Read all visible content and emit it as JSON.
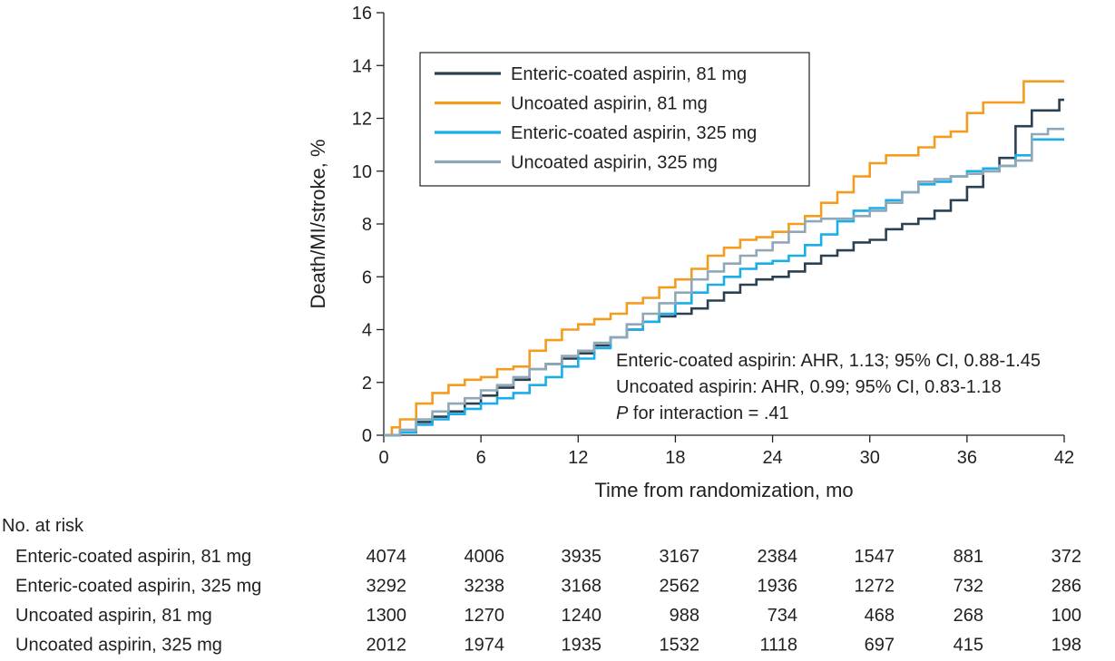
{
  "chart_data": {
    "type": "line",
    "step": true,
    "xlabel": "Time from randomization, mo",
    "ylabel": "Death/MI/stroke, %",
    "xlim": [
      0,
      42
    ],
    "ylim": [
      0,
      16
    ],
    "xticks": [
      0,
      6,
      12,
      18,
      24,
      30,
      36,
      42
    ],
    "yticks": [
      0,
      2,
      4,
      6,
      8,
      10,
      12,
      14,
      16
    ],
    "legend_position": "top-left",
    "series": [
      {
        "name": "Enteric-coated aspirin, 81 mg",
        "color": "#2b4050",
        "points": [
          [
            0,
            0
          ],
          [
            1,
            0.2
          ],
          [
            2,
            0.5
          ],
          [
            3,
            0.7
          ],
          [
            4,
            0.9
          ],
          [
            5,
            1.2
          ],
          [
            6,
            1.5
          ],
          [
            7,
            1.8
          ],
          [
            8,
            2.1
          ],
          [
            9,
            2.5
          ],
          [
            10,
            2.7
          ],
          [
            11,
            2.9
          ],
          [
            12,
            3.1
          ],
          [
            13,
            3.4
          ],
          [
            14,
            3.7
          ],
          [
            15,
            4.0
          ],
          [
            16,
            4.3
          ],
          [
            17,
            4.5
          ],
          [
            18,
            4.6
          ],
          [
            19,
            4.8
          ],
          [
            20,
            5.1
          ],
          [
            21,
            5.4
          ],
          [
            22,
            5.7
          ],
          [
            23,
            5.9
          ],
          [
            24,
            6.0
          ],
          [
            25,
            6.2
          ],
          [
            26,
            6.5
          ],
          [
            27,
            6.8
          ],
          [
            28,
            7.0
          ],
          [
            29,
            7.3
          ],
          [
            30,
            7.4
          ],
          [
            31,
            7.8
          ],
          [
            32,
            8.0
          ],
          [
            33,
            8.2
          ],
          [
            34,
            8.5
          ],
          [
            35,
            8.9
          ],
          [
            36,
            9.4
          ],
          [
            37,
            10.0
          ],
          [
            38,
            10.5
          ],
          [
            39,
            11.7
          ],
          [
            40,
            12.3
          ],
          [
            41.6,
            12.3
          ],
          [
            41.7,
            12.7
          ],
          [
            42,
            12.7
          ]
        ]
      },
      {
        "name": "Uncoated aspirin, 81 mg",
        "color": "#f39c1e",
        "points": [
          [
            0,
            0
          ],
          [
            0.5,
            0.3
          ],
          [
            1,
            0.6
          ],
          [
            2,
            1.2
          ],
          [
            3,
            1.6
          ],
          [
            4,
            1.9
          ],
          [
            5,
            2.1
          ],
          [
            6,
            2.2
          ],
          [
            7,
            2.5
          ],
          [
            8,
            2.6
          ],
          [
            9,
            3.2
          ],
          [
            10,
            3.6
          ],
          [
            11,
            4.0
          ],
          [
            12,
            4.2
          ],
          [
            13,
            4.4
          ],
          [
            14,
            4.6
          ],
          [
            15,
            5.0
          ],
          [
            16,
            5.2
          ],
          [
            17,
            5.6
          ],
          [
            18,
            5.9
          ],
          [
            19,
            6.3
          ],
          [
            20,
            6.8
          ],
          [
            21,
            7.1
          ],
          [
            22,
            7.4
          ],
          [
            23,
            7.5
          ],
          [
            24,
            7.7
          ],
          [
            25,
            8.0
          ],
          [
            26,
            8.3
          ],
          [
            27,
            8.8
          ],
          [
            28,
            9.2
          ],
          [
            29,
            9.8
          ],
          [
            30,
            10.3
          ],
          [
            31,
            10.6
          ],
          [
            32,
            10.6
          ],
          [
            33,
            10.9
          ],
          [
            34,
            11.3
          ],
          [
            35,
            11.5
          ],
          [
            36,
            12.2
          ],
          [
            37,
            12.6
          ],
          [
            39,
            12.6
          ],
          [
            39.5,
            13.4
          ],
          [
            42,
            13.4
          ]
        ]
      },
      {
        "name": "Enteric-coated aspirin, 325 mg",
        "color": "#19aee8",
        "points": [
          [
            0,
            0
          ],
          [
            1,
            0.1
          ],
          [
            2,
            0.4
          ],
          [
            3,
            0.6
          ],
          [
            4,
            0.8
          ],
          [
            5,
            1.0
          ],
          [
            6,
            1.2
          ],
          [
            7,
            1.4
          ],
          [
            8,
            1.6
          ],
          [
            9,
            1.9
          ],
          [
            10,
            2.2
          ],
          [
            11,
            2.6
          ],
          [
            12,
            2.9
          ],
          [
            13,
            3.3
          ],
          [
            14,
            3.7
          ],
          [
            15,
            4.0
          ],
          [
            16,
            4.3
          ],
          [
            17,
            4.6
          ],
          [
            18,
            5.0
          ],
          [
            19,
            5.4
          ],
          [
            20,
            5.7
          ],
          [
            21,
            6.0
          ],
          [
            22,
            6.3
          ],
          [
            23,
            6.5
          ],
          [
            24,
            6.6
          ],
          [
            25,
            6.8
          ],
          [
            26,
            7.2
          ],
          [
            27,
            7.6
          ],
          [
            28,
            8.1
          ],
          [
            29,
            8.5
          ],
          [
            30,
            8.6
          ],
          [
            31,
            8.9
          ],
          [
            32,
            9.2
          ],
          [
            33,
            9.5
          ],
          [
            34,
            9.6
          ],
          [
            35,
            9.8
          ],
          [
            36,
            10.0
          ],
          [
            37,
            10.1
          ],
          [
            38,
            10.2
          ],
          [
            39,
            10.6
          ],
          [
            40,
            11.2
          ],
          [
            42,
            11.2
          ]
        ]
      },
      {
        "name": "Uncoated aspirin, 325 mg",
        "color": "#8fa8b8",
        "points": [
          [
            0,
            0
          ],
          [
            1,
            0.2
          ],
          [
            2,
            0.6
          ],
          [
            3,
            0.9
          ],
          [
            4,
            1.2
          ],
          [
            5,
            1.4
          ],
          [
            6,
            1.7
          ],
          [
            7,
            1.9
          ],
          [
            8,
            2.2
          ],
          [
            9,
            2.5
          ],
          [
            10,
            2.7
          ],
          [
            11,
            3.0
          ],
          [
            12,
            3.2
          ],
          [
            13,
            3.5
          ],
          [
            14,
            3.7
          ],
          [
            15,
            4.2
          ],
          [
            16,
            4.6
          ],
          [
            17,
            5.0
          ],
          [
            18,
            5.4
          ],
          [
            19,
            5.9
          ],
          [
            20,
            6.2
          ],
          [
            21,
            6.5
          ],
          [
            22,
            6.8
          ],
          [
            23,
            7.0
          ],
          [
            24,
            7.3
          ],
          [
            25,
            7.7
          ],
          [
            26,
            8.1
          ],
          [
            27,
            8.2
          ],
          [
            28,
            8.2
          ],
          [
            29,
            8.3
          ],
          [
            30,
            8.5
          ],
          [
            31,
            8.8
          ],
          [
            32,
            9.2
          ],
          [
            33,
            9.6
          ],
          [
            34,
            9.7
          ],
          [
            35,
            9.8
          ],
          [
            36,
            9.9
          ],
          [
            37,
            10.0
          ],
          [
            38,
            10.2
          ],
          [
            39,
            10.4
          ],
          [
            40,
            11.4
          ],
          [
            41,
            11.6
          ],
          [
            42,
            11.6
          ]
        ]
      }
    ],
    "annotations": [
      {
        "text": "Enteric-coated aspirin: AHR, 1.13; 95% CI, 0.88-1.45"
      },
      {
        "text": "Uncoated aspirin: AHR, 0.99; 95% CI, 0.83-1.18"
      },
      {
        "text_italic": "P",
        "text": " for interaction = .41"
      }
    ],
    "risk_table": {
      "title": "No. at risk",
      "times": [
        0,
        6,
        12,
        18,
        24,
        30,
        36,
        42
      ],
      "rows": [
        {
          "label": "Enteric-coated aspirin, 81 mg",
          "values": [
            4074,
            4006,
            3935,
            3167,
            2384,
            1547,
            881,
            372
          ]
        },
        {
          "label": "Enteric-coated aspirin, 325 mg",
          "values": [
            3292,
            3238,
            3168,
            2562,
            1936,
            1272,
            732,
            286
          ]
        },
        {
          "label": "Uncoated aspirin, 81 mg",
          "values": [
            1300,
            1270,
            1240,
            988,
            734,
            468,
            268,
            100
          ]
        },
        {
          "label": "Uncoated aspirin, 325 mg",
          "values": [
            2012,
            1974,
            1935,
            1532,
            1118,
            697,
            415,
            198
          ]
        }
      ]
    }
  }
}
